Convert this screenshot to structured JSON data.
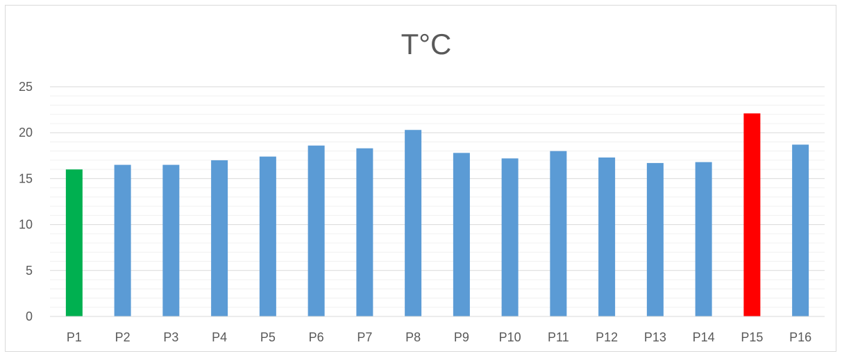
{
  "chart_data": {
    "type": "bar",
    "title": "T°C",
    "xlabel": "",
    "ylabel": "",
    "ylim": [
      0,
      25
    ],
    "y_major_step": 5,
    "y_minor_step": 1,
    "grid": true,
    "legend": "none",
    "categories": [
      "P1",
      "P2",
      "P3",
      "P4",
      "P5",
      "P6",
      "P7",
      "P8",
      "P9",
      "P10",
      "P11",
      "P12",
      "P13",
      "P14",
      "P15",
      "P16"
    ],
    "values": [
      16.0,
      16.5,
      16.5,
      17.0,
      17.4,
      18.6,
      18.3,
      20.3,
      17.8,
      17.2,
      18.0,
      17.3,
      16.7,
      16.8,
      22.1,
      18.7
    ],
    "colors": {
      "default": "#5b9bd5",
      "min": "#00b050",
      "max": "#ff0000",
      "major_grid": "#d9d9d9",
      "minor_grid": "#f0f0f0",
      "text": "#595959"
    },
    "highlight": {
      "P1": "min",
      "P15": "max"
    }
  }
}
